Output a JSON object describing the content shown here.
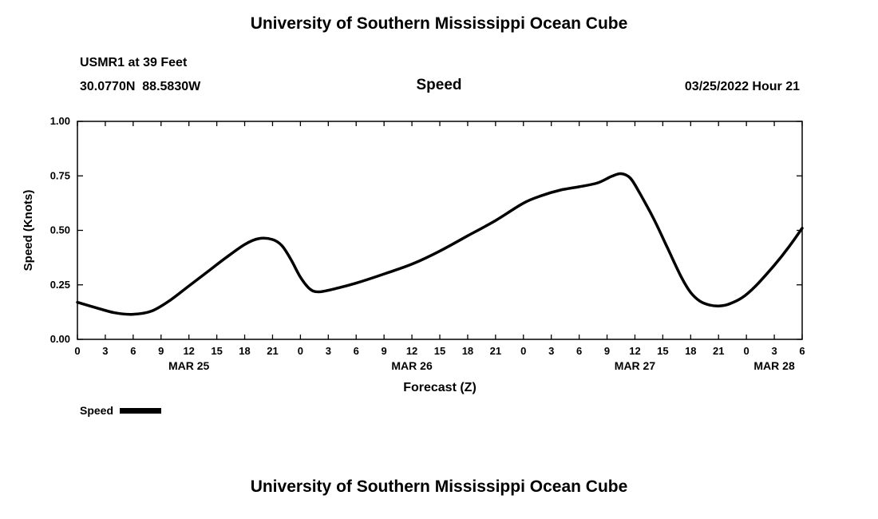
{
  "page": {
    "top_title": "University of Southern Mississippi Ocean Cube",
    "bottom_title": "University of Southern Mississippi Ocean Cube"
  },
  "header": {
    "station": "USMR1 at 39 Feet",
    "coordinates": "30.0770N  88.5830W",
    "plot_title": "Speed",
    "datetime": "03/25/2022 Hour 21"
  },
  "chart_data": {
    "type": "line",
    "title": "Speed",
    "xlabel": "Forecast (Z)",
    "ylabel": "Speed (Knots)",
    "ylim": [
      0,
      1
    ],
    "yticks": [
      0,
      0.25,
      0.5,
      0.75,
      1
    ],
    "ytick_labels": [
      "0.00",
      "0.25",
      "0.50",
      "0.75",
      "1.00"
    ],
    "xlim_hours": [
      0,
      78
    ],
    "xtick_interval_hours": 3,
    "xtick_labels": [
      "0",
      "3",
      "6",
      "9",
      "12",
      "15",
      "18",
      "21",
      "0",
      "3",
      "6",
      "9",
      "12",
      "15",
      "18",
      "21",
      "0",
      "3",
      "6",
      "9",
      "12",
      "15",
      "18",
      "21",
      "0",
      "3",
      "6"
    ],
    "day_labels": [
      {
        "label": "MAR 25",
        "hour": 12
      },
      {
        "label": "MAR 26",
        "hour": 36
      },
      {
        "label": "MAR 27",
        "hour": 60
      },
      {
        "label": "MAR 28",
        "hour": 75
      }
    ],
    "legend": [
      {
        "name": "Speed",
        "color": "#000000"
      }
    ],
    "series": [
      {
        "name": "Speed",
        "x": [
          0,
          2,
          4,
          6,
          8,
          10,
          12,
          14,
          16,
          18,
          19.5,
          21,
          22,
          23,
          24,
          25,
          26,
          28,
          30,
          33,
          36,
          39,
          42,
          45,
          48,
          50,
          52,
          54,
          56,
          57.5,
          58.5,
          59.5,
          60.5,
          62,
          63.5,
          65,
          66,
          67,
          68,
          69,
          70,
          71.5,
          73,
          75,
          76.5,
          78
        ],
        "values": [
          0.17,
          0.145,
          0.122,
          0.115,
          0.13,
          0.18,
          0.245,
          0.31,
          0.375,
          0.435,
          0.462,
          0.458,
          0.43,
          0.365,
          0.285,
          0.232,
          0.218,
          0.235,
          0.258,
          0.3,
          0.345,
          0.405,
          0.475,
          0.545,
          0.625,
          0.66,
          0.685,
          0.7,
          0.718,
          0.748,
          0.76,
          0.74,
          0.672,
          0.555,
          0.42,
          0.285,
          0.215,
          0.175,
          0.158,
          0.153,
          0.16,
          0.19,
          0.245,
          0.34,
          0.42,
          0.51
        ]
      }
    ]
  }
}
